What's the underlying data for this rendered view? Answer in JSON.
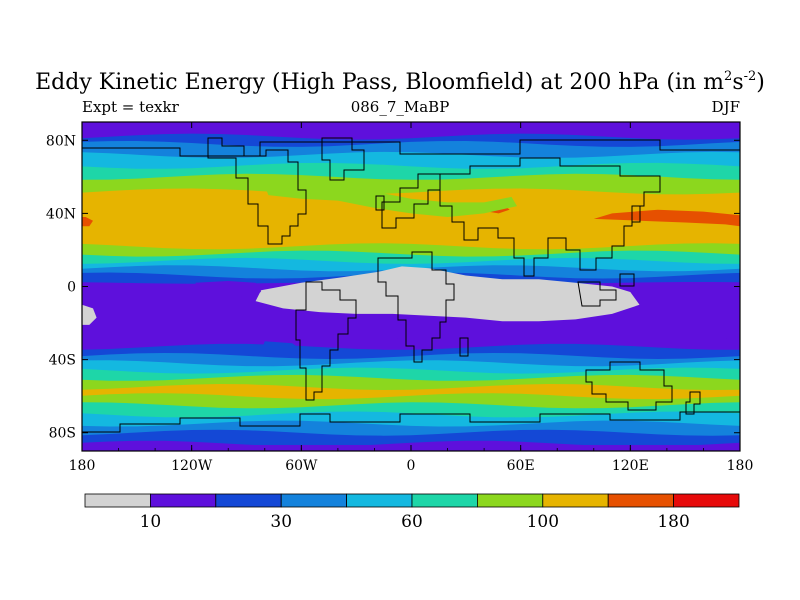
{
  "title_main": "Eddy Kinetic Energy (High Pass, Bloomfield) at 200 hPa (in m",
  "title_sup1": "2",
  "title_mid": "s",
  "title_sup2": "-2",
  "title_end": ")",
  "subtitle_left": "Expt = texkr",
  "subtitle_center": "086_7_MaBP",
  "subtitle_right": "DJF",
  "chart_data": {
    "type": "heatmap",
    "title": "Eddy Kinetic Energy (High Pass, Bloomfield) at 200 hPa (in m^2 s^-2)",
    "variable": "Eddy kinetic energy",
    "units": "m2 s-2",
    "season": "DJF",
    "experiment": "texkr",
    "x_range": [
      -180,
      180
    ],
    "y_range": [
      -90,
      90
    ],
    "x_ticks": [
      {
        "value": -180,
        "label": "180"
      },
      {
        "value": -120,
        "label": "120W"
      },
      {
        "value": -60,
        "label": "60W"
      },
      {
        "value": 0,
        "label": "0"
      },
      {
        "value": 60,
        "label": "60E"
      },
      {
        "value": 120,
        "label": "120E"
      },
      {
        "value": 180,
        "label": "180"
      }
    ],
    "y_ticks": [
      {
        "value": 80,
        "label": "80N"
      },
      {
        "value": 40,
        "label": "40N"
      },
      {
        "value": 0,
        "label": "0"
      },
      {
        "value": -40,
        "label": "40S"
      },
      {
        "value": -80,
        "label": "80S"
      }
    ],
    "colorbar": {
      "colors": [
        "#d3d3d3",
        "#5e10dc",
        "#1448d6",
        "#1482dc",
        "#14b8e0",
        "#1ed6a8",
        "#8cd71e",
        "#e6b400",
        "#e65000",
        "#e60a0a"
      ],
      "tick_labels": [
        {
          "after_index": 0,
          "label": "10"
        },
        {
          "after_index": 2,
          "label": "30"
        },
        {
          "after_index": 4,
          "label": "60"
        },
        {
          "after_index": 6,
          "label": "100"
        },
        {
          "after_index": 8,
          "label": "180"
        }
      ]
    },
    "zonal_profile": [
      {
        "lat": 90,
        "level": 1
      },
      {
        "lat": 85,
        "level": 1
      },
      {
        "lat": 82,
        "level": 2
      },
      {
        "lat": 78,
        "level": 3
      },
      {
        "lat": 72,
        "level": 4
      },
      {
        "lat": 66,
        "level": 5
      },
      {
        "lat": 60,
        "level": 6
      },
      {
        "lat": 52,
        "level": 7
      },
      {
        "lat": 28,
        "level": 7
      },
      {
        "lat": 22,
        "level": 6
      },
      {
        "lat": 18,
        "level": 5
      },
      {
        "lat": 14,
        "level": 4
      },
      {
        "lat": 10,
        "level": 3
      },
      {
        "lat": 6,
        "level": 2
      },
      {
        "lat": 2,
        "level": 1
      },
      {
        "lat": -28,
        "level": 1
      },
      {
        "lat": -33,
        "level": 2
      },
      {
        "lat": -38,
        "level": 3
      },
      {
        "lat": -42,
        "level": 4
      },
      {
        "lat": -46,
        "level": 5
      },
      {
        "lat": -50,
        "level": 6
      },
      {
        "lat": -55,
        "level": 7
      },
      {
        "lat": -60,
        "level": 6
      },
      {
        "lat": -65,
        "level": 5
      },
      {
        "lat": -70,
        "level": 4
      },
      {
        "lat": -75,
        "level": 3
      },
      {
        "lat": -80,
        "level": 2
      },
      {
        "lat": -86,
        "level": 1
      },
      {
        "lat": -90,
        "level": 1
      }
    ],
    "features": [
      {
        "name": "tropical-low-region",
        "level": 0,
        "points": [
          [
            -82,
            -2
          ],
          [
            -60,
            2
          ],
          [
            -38,
            5
          ],
          [
            -18,
            8
          ],
          [
            -5,
            11
          ],
          [
            10,
            10
          ],
          [
            30,
            6
          ],
          [
            50,
            4
          ],
          [
            70,
            4
          ],
          [
            90,
            2
          ],
          [
            110,
            0
          ],
          [
            120,
            -3
          ],
          [
            125,
            -10
          ],
          [
            110,
            -15
          ],
          [
            90,
            -18
          ],
          [
            70,
            -19
          ],
          [
            50,
            -19
          ],
          [
            30,
            -17
          ],
          [
            10,
            -16
          ],
          [
            -10,
            -15
          ],
          [
            -30,
            -15
          ],
          [
            -50,
            -14
          ],
          [
            -70,
            -12
          ],
          [
            -85,
            -8
          ]
        ]
      },
      {
        "name": "east-pacific-low-region",
        "level": 0,
        "points": [
          [
            -180,
            -10
          ],
          [
            -174,
            -12
          ],
          [
            -172,
            -17
          ],
          [
            -176,
            -21
          ],
          [
            -180,
            -21
          ]
        ]
      },
      {
        "name": "us-gap-low-region",
        "level": 1,
        "points": [
          [
            -118,
            2
          ],
          [
            -100,
            3
          ],
          [
            -85,
            2
          ],
          [
            -82,
            -3
          ],
          [
            -95,
            -6
          ],
          [
            -115,
            -4
          ]
        ]
      },
      {
        "name": "andes-gap-region",
        "level": 2,
        "points": [
          [
            -80,
            -30
          ],
          [
            -65,
            -31
          ],
          [
            -58,
            -36
          ],
          [
            -70,
            -38
          ],
          [
            -82,
            -35
          ]
        ]
      },
      {
        "name": "pacific-jet-core",
        "level": 8,
        "points": [
          [
            100,
            37
          ],
          [
            125,
            36
          ],
          [
            150,
            35
          ],
          [
            172,
            34
          ],
          [
            180,
            33
          ],
          [
            180,
            39
          ],
          [
            160,
            41
          ],
          [
            135,
            42
          ],
          [
            110,
            40
          ]
        ]
      },
      {
        "name": "asia-jet-core",
        "level": 8,
        "points": [
          [
            42,
            44
          ],
          [
            50,
            45
          ],
          [
            54,
            42
          ],
          [
            48,
            40
          ],
          [
            42,
            41
          ]
        ]
      },
      {
        "name": "atlantic-entry-core",
        "level": 8,
        "points": [
          [
            -180,
            33
          ],
          [
            -176,
            33
          ],
          [
            -174,
            36
          ],
          [
            -178,
            38
          ],
          [
            -180,
            38
          ]
        ]
      },
      {
        "name": "ne-america-green",
        "level": 6,
        "points": [
          [
            -80,
            55
          ],
          [
            -60,
            57
          ],
          [
            -40,
            55
          ],
          [
            -20,
            52
          ],
          [
            0,
            48
          ],
          [
            20,
            46
          ],
          [
            40,
            46
          ],
          [
            55,
            49
          ],
          [
            58,
            44
          ],
          [
            40,
            40
          ],
          [
            20,
            38
          ],
          [
            0,
            40
          ],
          [
            -20,
            43
          ],
          [
            -40,
            47
          ],
          [
            -60,
            48
          ],
          [
            -78,
            50
          ]
        ]
      }
    ],
    "land_outlines_approximate": true
  }
}
